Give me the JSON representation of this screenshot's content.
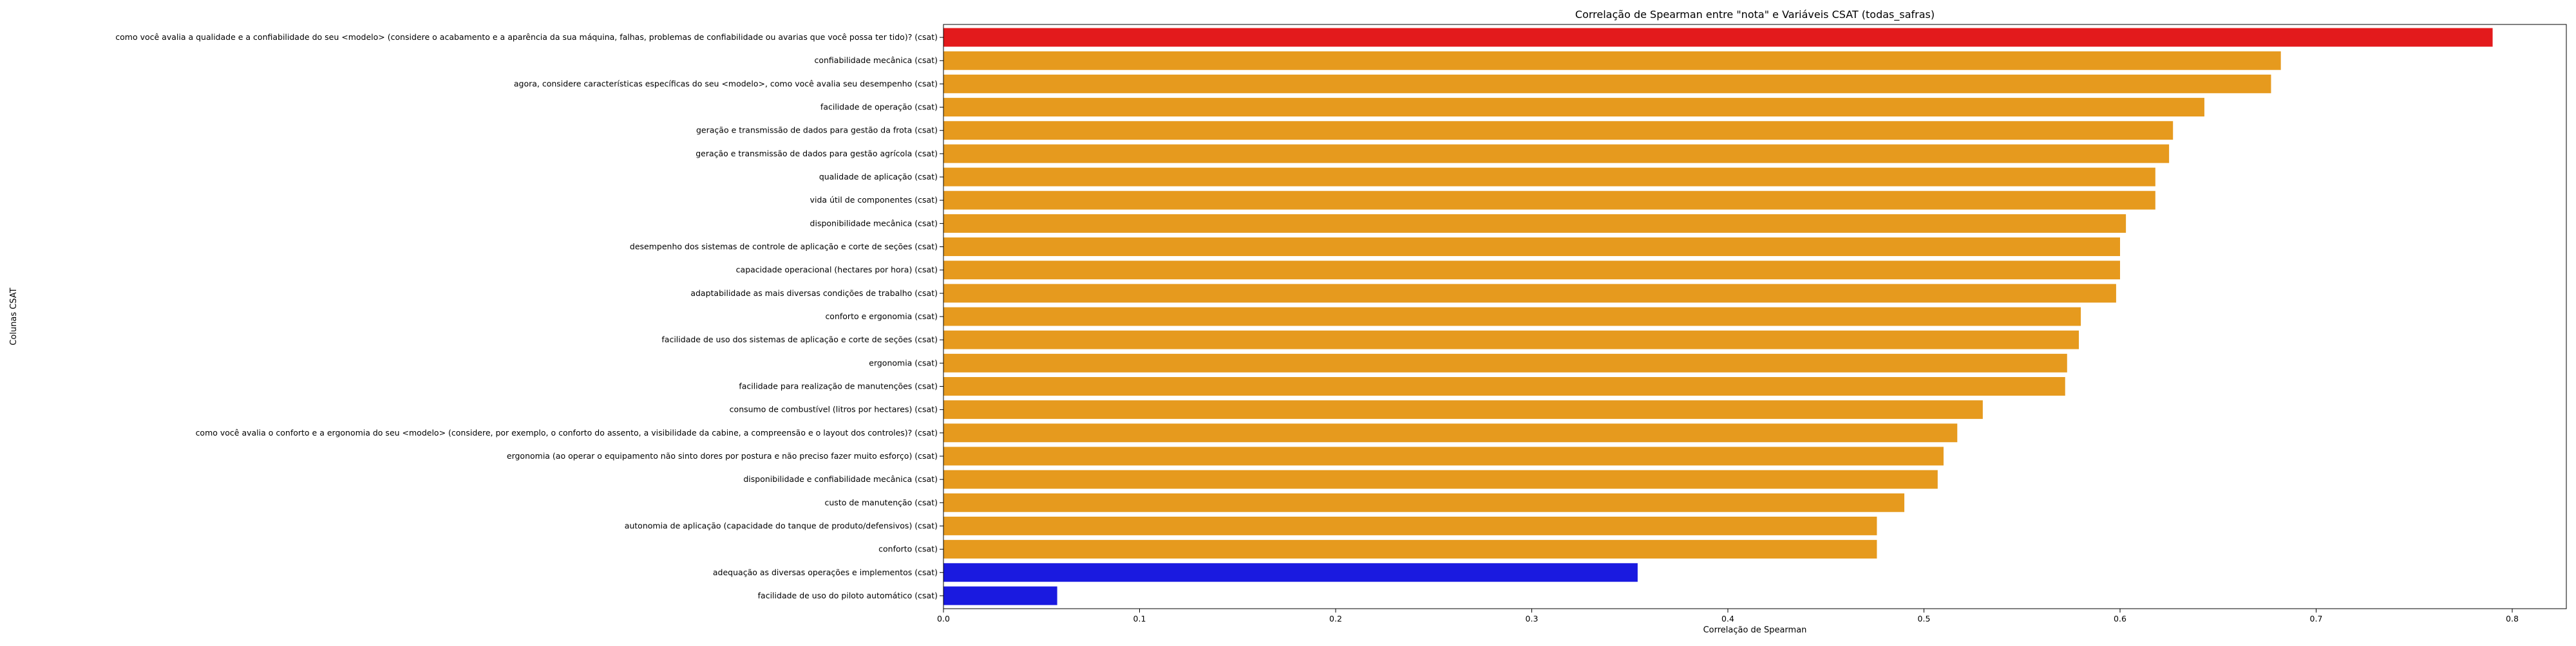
{
  "chart_data": {
    "type": "bar",
    "orientation": "horizontal",
    "title": "Correlação de Spearman entre \"nota\" e Variáveis CSAT (todas_safras)",
    "xlabel": "Correlação de Spearman",
    "ylabel": "Colunas CSAT",
    "xlim": [
      0,
      0.84
    ],
    "xticks": [
      "0.0",
      "0.1",
      "0.2",
      "0.3",
      "0.4",
      "0.5",
      "0.6",
      "0.7",
      "0.8"
    ],
    "grid": false,
    "legend": "none",
    "categories": [
      "como você avalia a qualidade e a confiabilidade do seu <modelo> (considere o acabamento e a aparência da sua máquina, falhas, problemas de confiabilidade ou avarias que você possa ter tido)? (csat)",
      "confiabilidade mecânica (csat)",
      "agora, considere características específicas do seu <modelo>, como você avalia seu desempenho (csat)",
      "facilidade de operação (csat)",
      "geração e transmissão de dados para gestão da frota (csat)",
      "geração e transmissão de dados para gestão agrícola (csat)",
      "qualidade de aplicação (csat)",
      "vida útil de componentes (csat)",
      "disponibilidade mecânica (csat)",
      "desempenho dos sistemas de controle de aplicação e corte de seções (csat)",
      "capacidade operacional (hectares por hora) (csat)",
      "adaptabilidade as mais diversas condições de trabalho (csat)",
      "conforto e ergonomia (csat)",
      "facilidade de uso dos sistemas de aplicação e corte de seções (csat)",
      "ergonomia (csat)",
      "facilidade para realização de manutenções (csat)",
      "consumo de combustível (litros por hectares) (csat)",
      "como você avalia o conforto e a ergonomia do seu <modelo>  (considere, por exemplo, o conforto do assento, a visibilidade da cabine, a compreensão e o layout dos controles)? (csat)",
      "ergonomia (ao operar o equipamento não sinto dores por postura e não preciso fazer muito esforço) (csat)",
      "disponibilidade e confiabilidade mecânica  (csat)",
      "custo de manutenção (csat)",
      "autonomia de aplicação (capacidade do tanque de produto/defensivos) (csat)",
      "conforto (csat)",
      "adequação as diversas operações e implementos (csat)",
      "facilidade de uso do piloto automático (csat)"
    ],
    "values": [
      0.79,
      0.682,
      0.677,
      0.643,
      0.627,
      0.625,
      0.618,
      0.618,
      0.603,
      0.6,
      0.6,
      0.598,
      0.58,
      0.579,
      0.573,
      0.572,
      0.53,
      0.517,
      0.51,
      0.507,
      0.49,
      0.476,
      0.476,
      0.354,
      0.058
    ],
    "bar_colors": [
      "#e31a1c",
      "#e69a1e",
      "#e69a1e",
      "#e69a1e",
      "#e69a1e",
      "#e69a1e",
      "#e69a1e",
      "#e69a1e",
      "#e69a1e",
      "#e69a1e",
      "#e69a1e",
      "#e69a1e",
      "#e69a1e",
      "#e69a1e",
      "#e69a1e",
      "#e69a1e",
      "#e69a1e",
      "#e69a1e",
      "#e69a1e",
      "#e69a1e",
      "#e69a1e",
      "#e69a1e",
      "#e69a1e",
      "#1a1ae0",
      "#1a1ae0"
    ]
  }
}
